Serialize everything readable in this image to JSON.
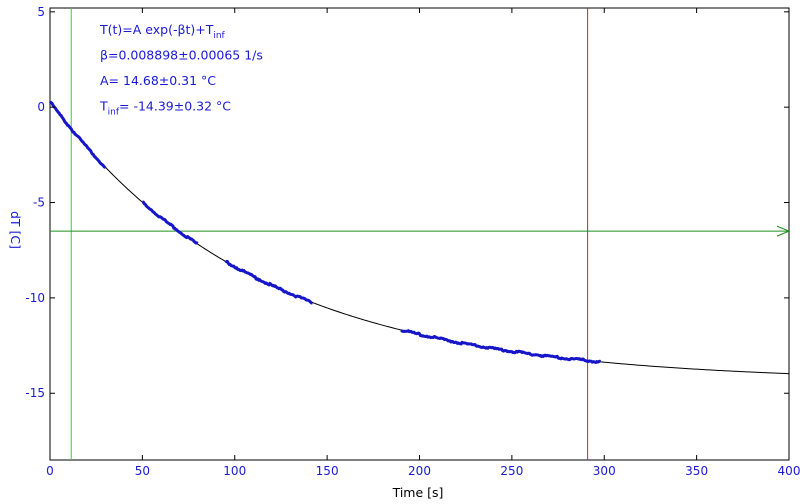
{
  "chart_data": {
    "type": "scatter",
    "xlabel": "Time [s]",
    "ylabel": "dT [C]",
    "xlim": [
      0,
      400
    ],
    "ylim": [
      -18.5,
      5.2
    ],
    "x_ticks": [
      "0",
      "50",
      "100",
      "150",
      "200",
      "250",
      "300",
      "350",
      "400"
    ],
    "y_ticks": [
      "5",
      "0",
      "-5",
      "-10",
      "-15"
    ],
    "fit": {
      "model": "T(t)=A exp(-βt)+T_inf",
      "A": 14.68,
      "beta": 0.008898,
      "T_inf": -14.39,
      "t_range": [
        0,
        400
      ]
    },
    "annotation_lines": [
      {
        "prefix": "T(t)=A exp(-βt)+T",
        "sub": "inf",
        "rest": ""
      },
      {
        "prefix": "β=0.008898±0.00065 1/s",
        "sub": "",
        "rest": ""
      },
      {
        "prefix": "A= 14.68±0.31 °C",
        "sub": "",
        "rest": ""
      },
      {
        "prefix": "T",
        "sub": "inf",
        "rest": "= -14.39±0.32 °C"
      }
    ],
    "data_segments": [
      {
        "t_start": 0,
        "t_end": 30
      },
      {
        "t_start": 50,
        "t_end": 80
      },
      {
        "t_start": 95,
        "t_end": 142
      },
      {
        "t_start": 190,
        "t_end": 298
      }
    ],
    "markers": [
      {
        "type": "vertical",
        "x": 11.5,
        "color": "#2fd62f"
      },
      {
        "type": "vertical",
        "x": 291,
        "color": "#d42020"
      },
      {
        "type": "horizontal",
        "y": -6.5,
        "color": "#1f8f1f"
      }
    ],
    "colors": {
      "data": "#1616c8",
      "fit": "#000000",
      "axis_text": "#1a1ad6"
    },
    "grid": false
  }
}
